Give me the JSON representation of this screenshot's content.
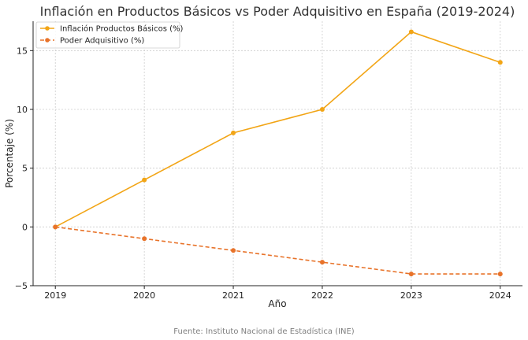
{
  "chart_data": {
    "type": "line",
    "title": "Inflación en Productos Básicos vs Poder Adquisitivo en España (2019-2024)",
    "xlabel": "Año",
    "ylabel": "Porcentaje (%)",
    "x": [
      2019,
      2020,
      2021,
      2022,
      2023,
      2024
    ],
    "x_ticks": [
      "2019",
      "2020",
      "2021",
      "2022",
      "2023",
      "2024"
    ],
    "y_ticks": [
      "−5",
      "0",
      "5",
      "10",
      "15"
    ],
    "y_tick_values": [
      -5,
      0,
      5,
      10,
      15
    ],
    "xlim": [
      2018.75,
      2024.25
    ],
    "ylim": [
      -5,
      17.5
    ],
    "grid": true,
    "legend_position": "top-left",
    "series": [
      {
        "name": "Inflación Productos Básicos (%)",
        "values": [
          0,
          4,
          8,
          10,
          16.6,
          14
        ],
        "color": "#f2a516",
        "style": "solid"
      },
      {
        "name": "Poder Adquisitivo (%)",
        "values": [
          0,
          -1,
          -2,
          -3,
          -4,
          -4
        ],
        "color": "#e8732a",
        "style": "dashed"
      }
    ],
    "source": "Fuente: Instituto Nacional de Estadística (INE)"
  }
}
